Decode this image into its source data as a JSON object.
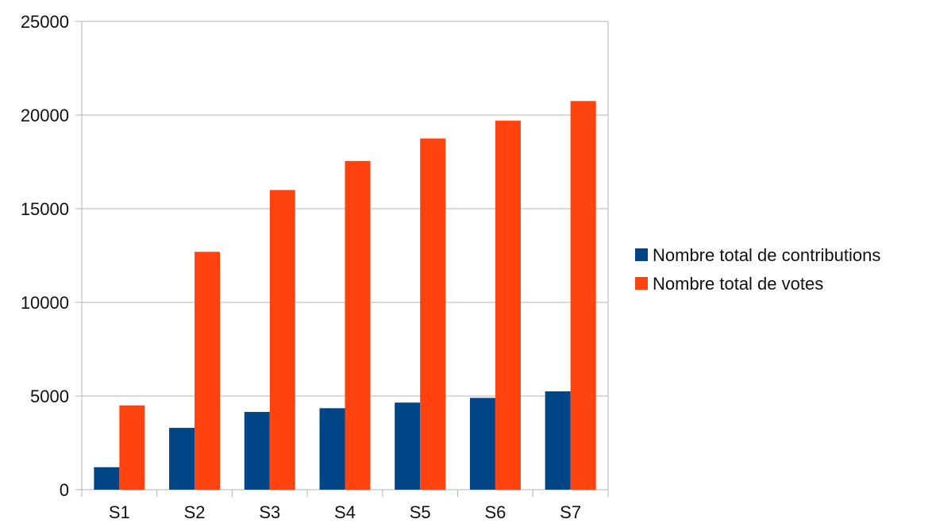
{
  "chart_data": {
    "type": "bar",
    "categories": [
      "S1",
      "S2",
      "S3",
      "S4",
      "S5",
      "S6",
      "S7"
    ],
    "series": [
      {
        "name": "Nombre total de contributions",
        "color": "#004586",
        "values": [
          1200,
          3300,
          4150,
          4350,
          4650,
          4900,
          5250
        ]
      },
      {
        "name": "Nombre total de votes",
        "color": "#ff420e",
        "values": [
          4500,
          12700,
          16000,
          17550,
          18750,
          19700,
          20750
        ]
      }
    ],
    "title": "",
    "xlabel": "",
    "ylabel": "",
    "ylim": [
      0,
      25000
    ],
    "yticks": [
      0,
      5000,
      10000,
      15000,
      20000,
      25000
    ],
    "grid": true,
    "legend_position": "right"
  }
}
